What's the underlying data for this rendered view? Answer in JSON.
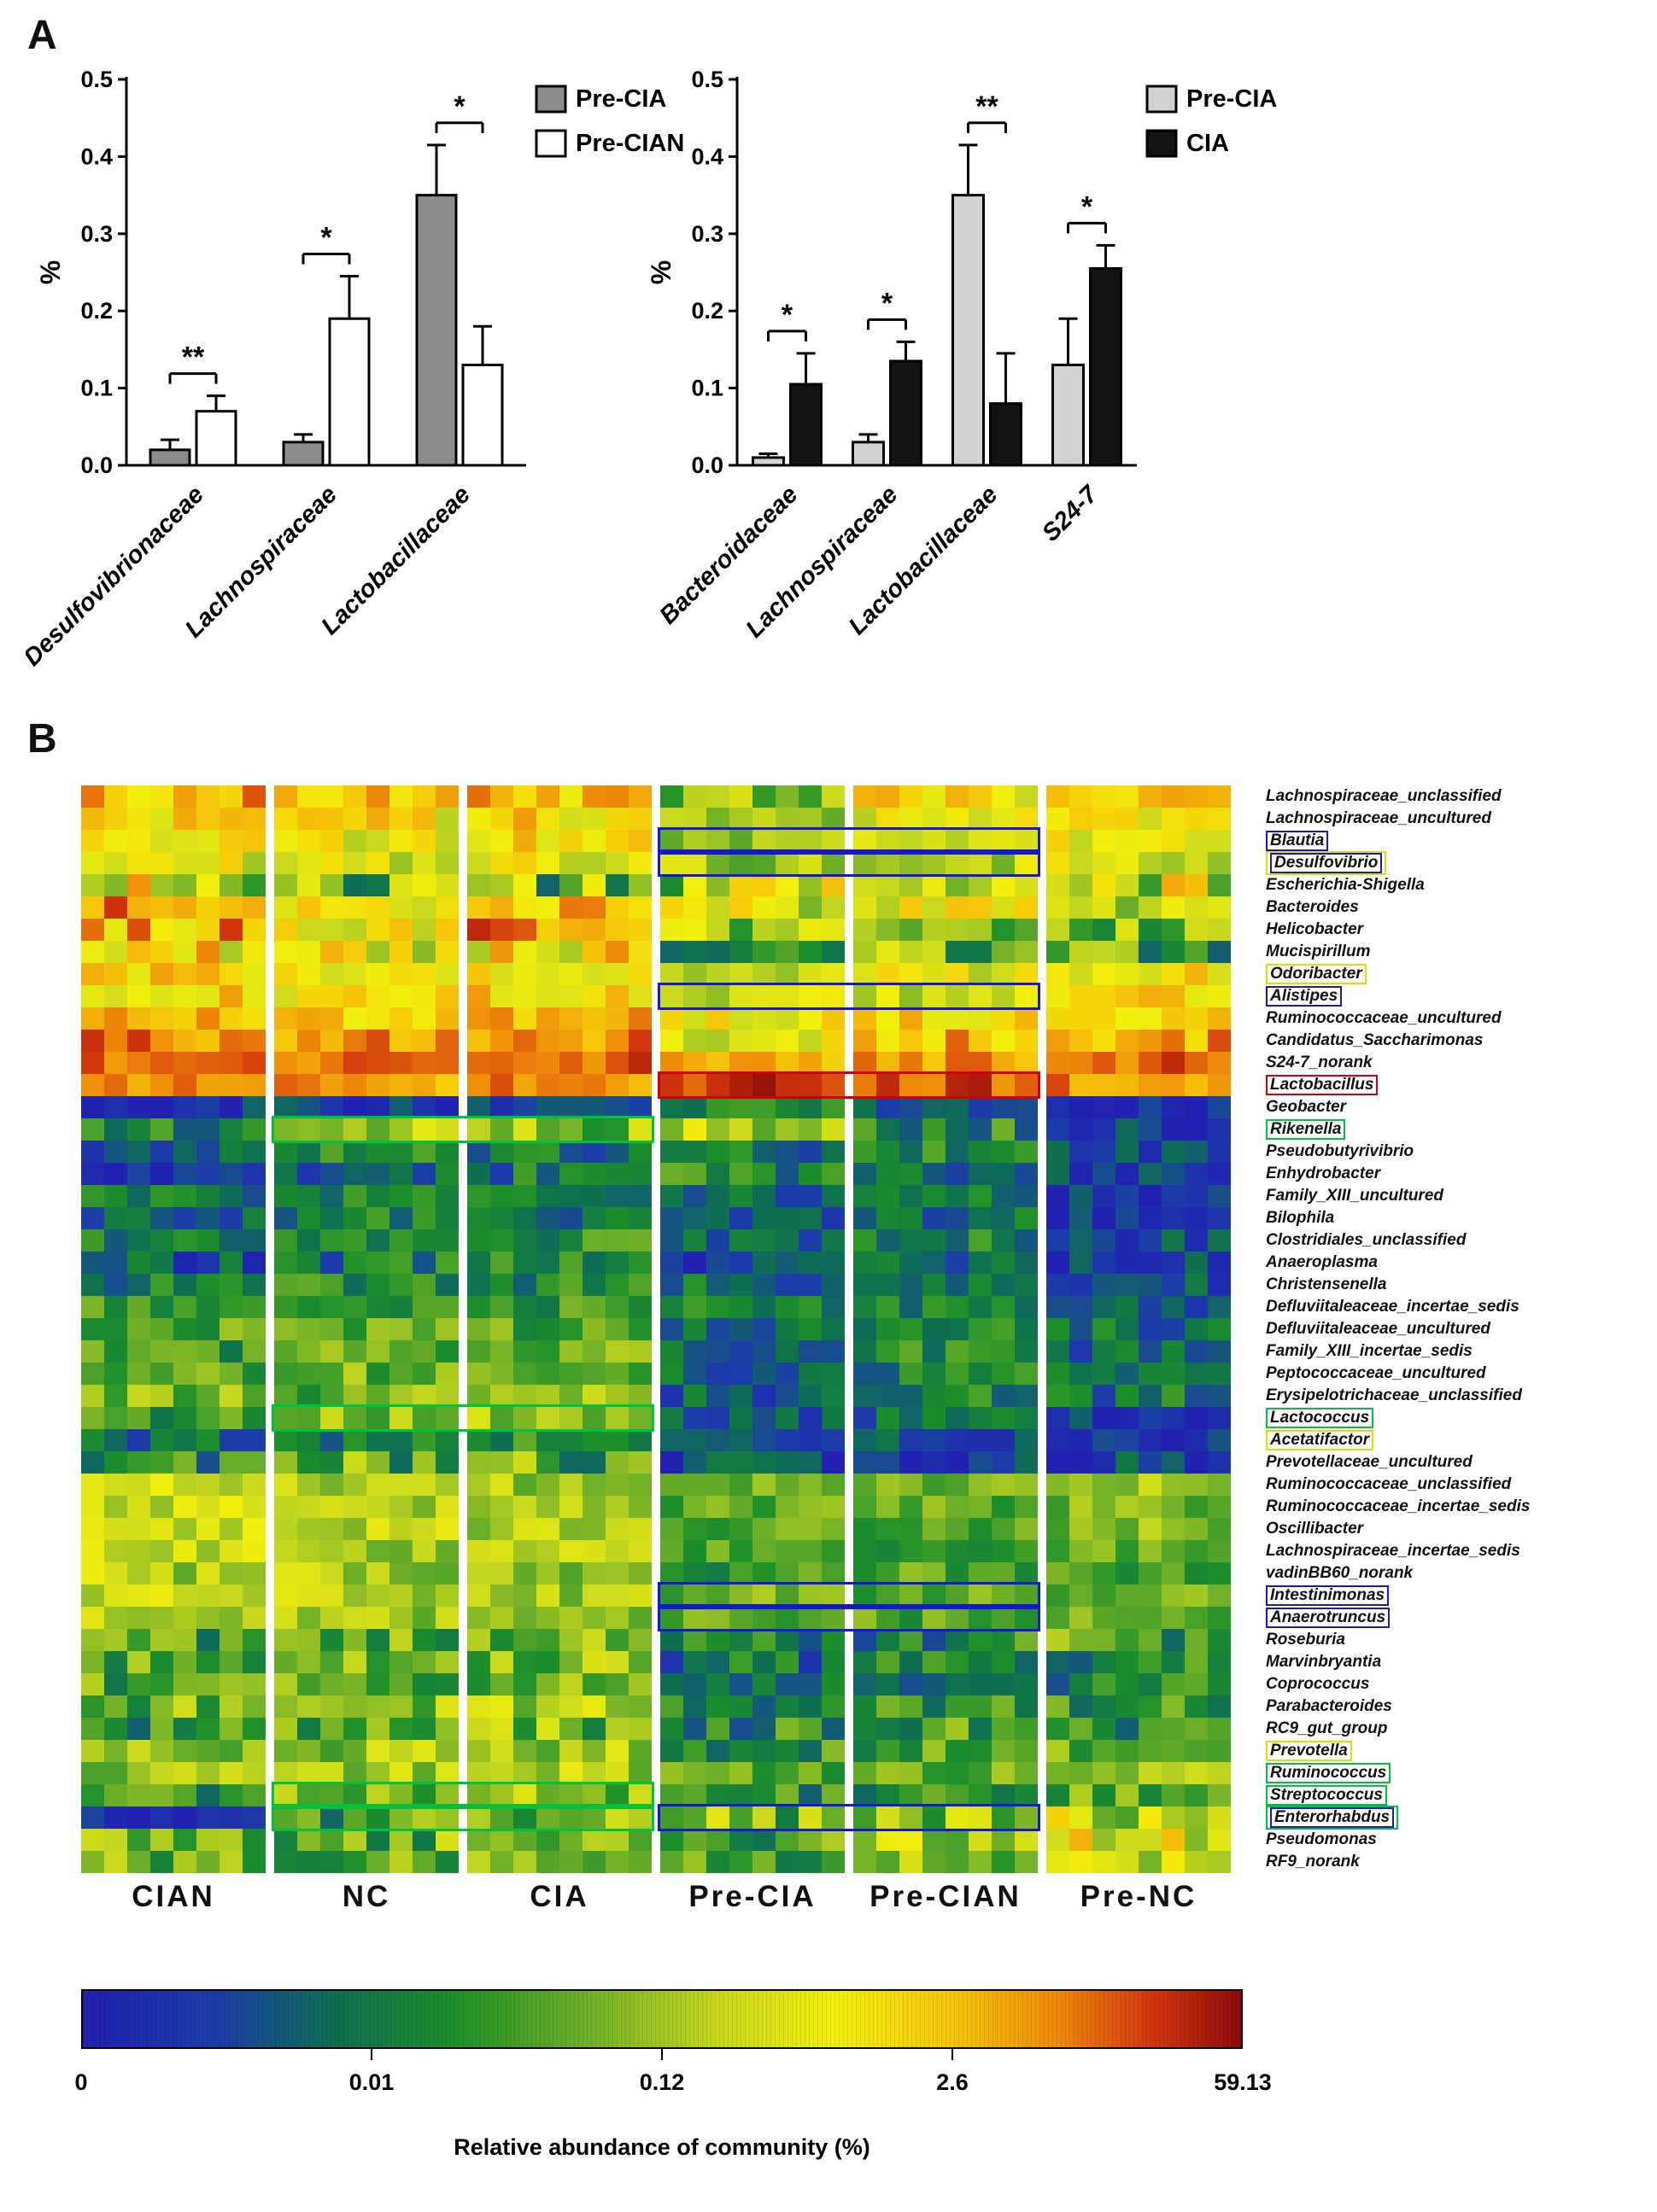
{
  "panel_a": {
    "label": "A"
  },
  "panel_b": {
    "label": "B"
  },
  "chart_data": [
    {
      "type": "bar",
      "panel": "A-left",
      "ylabel": "%",
      "ylim": [
        0,
        0.5
      ],
      "yticks": [
        0.0,
        0.1,
        0.2,
        0.3,
        0.4,
        0.5
      ],
      "categories": [
        "Desulfovibrionaceae",
        "Lachnospiraceae",
        "Lactobacillaceae"
      ],
      "series": [
        {
          "name": "Pre-CIA",
          "fill": "#8c8c8c",
          "values": [
            0.02,
            0.03,
            0.35
          ],
          "errors": [
            0.013,
            0.01,
            0.065
          ]
        },
        {
          "name": "Pre-CIAN",
          "fill": "#ffffff",
          "values": [
            0.07,
            0.19,
            0.13
          ],
          "errors": [
            0.02,
            0.055,
            0.05
          ]
        }
      ],
      "significance": [
        "**",
        "*",
        "*"
      ],
      "legend_position": "top-right",
      "grid": false
    },
    {
      "type": "bar",
      "panel": "A-right",
      "ylabel": "%",
      "ylim": [
        0,
        0.5
      ],
      "yticks": [
        0.0,
        0.1,
        0.2,
        0.3,
        0.4,
        0.5
      ],
      "categories": [
        "Bacteroidaceae",
        "Lachnospiraceae",
        "Lactobacillaceae",
        "S24-7"
      ],
      "series": [
        {
          "name": "Pre-CIA",
          "fill": "#d3d3d3",
          "values": [
            0.01,
            0.03,
            0.35,
            0.13
          ],
          "errors": [
            0.005,
            0.01,
            0.065,
            0.06
          ]
        },
        {
          "name": "CIA",
          "fill": "#141414",
          "values": [
            0.105,
            0.135,
            0.08,
            0.255
          ],
          "errors": [
            0.04,
            0.025,
            0.065,
            0.03
          ]
        }
      ],
      "significance": [
        "*",
        "*",
        "**",
        "*"
      ],
      "legend_position": "top-right",
      "grid": false
    },
    {
      "type": "heatmap",
      "panel": "B",
      "column_groups": [
        "CIAN",
        "NC",
        "CIA",
        "Pre-CIA",
        "Pre-CIAN",
        "Pre-NC"
      ],
      "columns_per_group": 8,
      "box_colors": {
        "blue": "#1616d6",
        "yellow": "#dede00",
        "red": "#d40000",
        "green": "#00c23c"
      },
      "colormap_stops": [
        [
          0.0,
          "#2121b2"
        ],
        [
          0.12,
          "#1b3fa6"
        ],
        [
          0.22,
          "#0e7050"
        ],
        [
          0.32,
          "#1d8f2a"
        ],
        [
          0.45,
          "#7ab427"
        ],
        [
          0.55,
          "#c8d81e"
        ],
        [
          0.65,
          "#f2ef0c"
        ],
        [
          0.75,
          "#f5c60a"
        ],
        [
          0.84,
          "#ee8b0a"
        ],
        [
          0.92,
          "#d4380e"
        ],
        [
          1.0,
          "#8f0b0b"
        ]
      ],
      "rows": [
        {
          "name": "Lachnospiraceae_unclassified",
          "box": null,
          "levels": [
            0.76,
            0.72,
            0.74,
            0.46,
            0.66,
            0.7
          ],
          "noise": 0.14
        },
        {
          "name": "Lachnospiraceae_uncultured",
          "box": null,
          "levels": [
            0.7,
            0.67,
            0.69,
            0.42,
            0.6,
            0.68
          ],
          "noise": 0.14
        },
        {
          "name": "Blautia",
          "box": [
            "blue"
          ],
          "levels": [
            0.67,
            0.64,
            0.67,
            0.46,
            0.55,
            0.64
          ],
          "noise": 0.12
        },
        {
          "name": "Desulfovibrio",
          "box": [
            "blue",
            "yellow"
          ],
          "levels": [
            0.62,
            0.6,
            0.62,
            0.5,
            0.55,
            0.6
          ],
          "noise": 0.12
        },
        {
          "name": "Escherichia-Shigella",
          "box": null,
          "levels": [
            0.58,
            0.42,
            0.4,
            0.55,
            0.52,
            0.58
          ],
          "noise": 0.26
        },
        {
          "name": "Bacteroides",
          "box": null,
          "levels": [
            0.78,
            0.68,
            0.74,
            0.58,
            0.62,
            0.55
          ],
          "noise": 0.16
        },
        {
          "name": "Helicobacter",
          "box": null,
          "levels": [
            0.8,
            0.72,
            0.76,
            0.45,
            0.5,
            0.4
          ],
          "noise": 0.2
        },
        {
          "name": "Mucispirillum",
          "box": null,
          "levels": [
            0.66,
            0.62,
            0.7,
            0.38,
            0.42,
            0.35
          ],
          "noise": 0.2
        },
        {
          "name": "Odoribacter",
          "box": [
            "yellow"
          ],
          "levels": [
            0.72,
            0.68,
            0.7,
            0.6,
            0.62,
            0.68
          ],
          "noise": 0.12
        },
        {
          "name": "Alistipes",
          "box": [
            "blue"
          ],
          "levels": [
            0.7,
            0.68,
            0.7,
            0.55,
            0.58,
            0.72
          ],
          "noise": 0.12
        },
        {
          "name": "Ruminococcaceae_uncultured",
          "box": null,
          "levels": [
            0.78,
            0.74,
            0.76,
            0.66,
            0.7,
            0.74
          ],
          "noise": 0.1
        },
        {
          "name": "Candidatus_Saccharimonas",
          "box": null,
          "levels": [
            0.84,
            0.8,
            0.82,
            0.6,
            0.76,
            0.8
          ],
          "noise": 0.12
        },
        {
          "name": "S24-7_norank",
          "box": null,
          "levels": [
            0.88,
            0.85,
            0.87,
            0.78,
            0.82,
            0.88
          ],
          "noise": 0.08
        },
        {
          "name": "Lactobacillus",
          "box": [
            "red"
          ],
          "levels": [
            0.82,
            0.8,
            0.82,
            0.92,
            0.9,
            0.84
          ],
          "noise": 0.08
        },
        {
          "name": "Geobacter",
          "box": null,
          "levels": [
            0.08,
            0.1,
            0.08,
            0.3,
            0.15,
            0.05
          ],
          "noise": 0.12
        },
        {
          "name": "Rikenella",
          "box": [
            "green"
          ],
          "levels": [
            0.3,
            0.48,
            0.45,
            0.55,
            0.3,
            0.08
          ],
          "noise": 0.15
        },
        {
          "name": "Pseudobutyrivibrio",
          "box": null,
          "levels": [
            0.15,
            0.25,
            0.2,
            0.25,
            0.3,
            0.1
          ],
          "noise": 0.15
        },
        {
          "name": "Enhydrobacter",
          "box": null,
          "levels": [
            0.12,
            0.22,
            0.25,
            0.3,
            0.2,
            0.08
          ],
          "noise": 0.15
        },
        {
          "name": "Family_XIII_uncultured",
          "box": null,
          "levels": [
            0.25,
            0.3,
            0.28,
            0.2,
            0.25,
            0.1
          ],
          "noise": 0.12
        },
        {
          "name": "Bilophila",
          "box": null,
          "levels": [
            0.2,
            0.28,
            0.25,
            0.15,
            0.22,
            0.08
          ],
          "noise": 0.12
        },
        {
          "name": "Clostridiales_unclassified",
          "box": null,
          "levels": [
            0.28,
            0.3,
            0.32,
            0.2,
            0.28,
            0.12
          ],
          "noise": 0.12
        },
        {
          "name": "Anaeroplasma",
          "box": null,
          "levels": [
            0.15,
            0.25,
            0.3,
            0.12,
            0.2,
            0.08
          ],
          "noise": 0.15
        },
        {
          "name": "Christensenella",
          "box": null,
          "levels": [
            0.25,
            0.32,
            0.3,
            0.22,
            0.28,
            0.15
          ],
          "noise": 0.12
        },
        {
          "name": "Defluviitaleaceae_incertae_sedis",
          "box": null,
          "levels": [
            0.35,
            0.38,
            0.36,
            0.25,
            0.3,
            0.2
          ],
          "noise": 0.12
        },
        {
          "name": "Defluviitaleaceae_uncultured",
          "box": null,
          "levels": [
            0.38,
            0.4,
            0.38,
            0.25,
            0.32,
            0.22
          ],
          "noise": 0.12
        },
        {
          "name": "Family_XIII_incertae_sedis",
          "box": null,
          "levels": [
            0.35,
            0.4,
            0.42,
            0.22,
            0.3,
            0.2
          ],
          "noise": 0.12
        },
        {
          "name": "Peptococcaceae_uncultured",
          "box": null,
          "levels": [
            0.38,
            0.42,
            0.4,
            0.2,
            0.28,
            0.25
          ],
          "noise": 0.12
        },
        {
          "name": "Erysipelotrichaceae_unclassified",
          "box": null,
          "levels": [
            0.4,
            0.42,
            0.45,
            0.18,
            0.25,
            0.22
          ],
          "noise": 0.15
        },
        {
          "name": "Lactococcus",
          "box": [
            "green"
          ],
          "levels": [
            0.35,
            0.46,
            0.48,
            0.15,
            0.2,
            0.1
          ],
          "noise": 0.12
        },
        {
          "name": "Acetatifactor",
          "box": [
            "yellow"
          ],
          "levels": [
            0.2,
            0.28,
            0.3,
            0.08,
            0.12,
            0.05
          ],
          "noise": 0.12
        },
        {
          "name": "Prevotellaceae_uncultured",
          "box": null,
          "levels": [
            0.32,
            0.4,
            0.38,
            0.06,
            0.06,
            0.05
          ],
          "noise": 0.2
        },
        {
          "name": "Ruminococcaceae_unclassified",
          "box": null,
          "levels": [
            0.55,
            0.52,
            0.5,
            0.45,
            0.42,
            0.48
          ],
          "noise": 0.1
        },
        {
          "name": "Ruminococcaceae_incertae_sedis",
          "box": null,
          "levels": [
            0.55,
            0.5,
            0.52,
            0.42,
            0.4,
            0.45
          ],
          "noise": 0.1
        },
        {
          "name": "Oscillibacter",
          "box": null,
          "levels": [
            0.58,
            0.55,
            0.52,
            0.4,
            0.38,
            0.45
          ],
          "noise": 0.1
        },
        {
          "name": "Lachnospiraceae_incertae_sedis",
          "box": null,
          "levels": [
            0.55,
            0.52,
            0.55,
            0.38,
            0.35,
            0.42
          ],
          "noise": 0.1
        },
        {
          "name": "vadinBB60_norank",
          "box": null,
          "levels": [
            0.52,
            0.5,
            0.48,
            0.35,
            0.38,
            0.4
          ],
          "noise": 0.12
        },
        {
          "name": "Intestinimonas",
          "box": [
            "blue"
          ],
          "levels": [
            0.55,
            0.52,
            0.5,
            0.42,
            0.4,
            0.42
          ],
          "noise": 0.1
        },
        {
          "name": "Anaerotruncus",
          "box": [
            "blue"
          ],
          "levels": [
            0.52,
            0.5,
            0.48,
            0.4,
            0.38,
            0.4
          ],
          "noise": 0.1
        },
        {
          "name": "Roseburia",
          "box": null,
          "levels": [
            0.35,
            0.4,
            0.45,
            0.25,
            0.3,
            0.35
          ],
          "noise": 0.18
        },
        {
          "name": "Marvinbryantia",
          "box": null,
          "levels": [
            0.4,
            0.42,
            0.45,
            0.22,
            0.28,
            0.32
          ],
          "noise": 0.15
        },
        {
          "name": "Coprococcus",
          "box": null,
          "levels": [
            0.38,
            0.4,
            0.42,
            0.25,
            0.3,
            0.28
          ],
          "noise": 0.15
        },
        {
          "name": "Parabacteroides",
          "box": null,
          "levels": [
            0.42,
            0.45,
            0.48,
            0.28,
            0.32,
            0.35
          ],
          "noise": 0.15
        },
        {
          "name": "RC9_gut_group",
          "box": null,
          "levels": [
            0.3,
            0.4,
            0.42,
            0.3,
            0.35,
            0.3
          ],
          "noise": 0.18
        },
        {
          "name": "Prevotella",
          "box": [
            "yellow"
          ],
          "levels": [
            0.5,
            0.48,
            0.52,
            0.35,
            0.4,
            0.45
          ],
          "noise": 0.15
        },
        {
          "name": "Ruminococcus",
          "box": [
            "green"
          ],
          "levels": [
            0.48,
            0.5,
            0.52,
            0.38,
            0.42,
            0.45
          ],
          "noise": 0.12
        },
        {
          "name": "Streptococcus",
          "box": [
            "green"
          ],
          "levels": [
            0.35,
            0.42,
            0.45,
            0.3,
            0.35,
            0.4
          ],
          "noise": 0.15
        },
        {
          "name": "Enterorhabdus",
          "box": [
            "blue",
            "green"
          ],
          "levels": [
            0.12,
            0.35,
            0.38,
            0.42,
            0.45,
            0.55
          ],
          "noise": 0.2
        },
        {
          "name": "Pseudomonas",
          "box": null,
          "levels": [
            0.45,
            0.42,
            0.44,
            0.4,
            0.52,
            0.62
          ],
          "noise": 0.18
        },
        {
          "name": "RF9_norank",
          "box": null,
          "levels": [
            0.42,
            0.4,
            0.44,
            0.36,
            0.46,
            0.52
          ],
          "noise": 0.15
        }
      ],
      "highlight_boxes": [
        {
          "row_index": 2,
          "group_start": 3,
          "group_end": 4,
          "color": "blue"
        },
        {
          "row_index": 3,
          "group_start": 3,
          "group_end": 4,
          "color": "blue"
        },
        {
          "row_index": 9,
          "group_start": 3,
          "group_end": 4,
          "color": "blue"
        },
        {
          "row_index": 13,
          "group_start": 3,
          "group_end": 4,
          "color": "red"
        },
        {
          "row_index": 15,
          "group_start": 1,
          "group_end": 2,
          "color": "green"
        },
        {
          "row_index": 28,
          "group_start": 1,
          "group_end": 2,
          "color": "green"
        },
        {
          "row_index": 36,
          "group_start": 3,
          "group_end": 4,
          "color": "blue"
        },
        {
          "row_index": 37,
          "group_start": 3,
          "group_end": 4,
          "color": "blue"
        },
        {
          "row_index": 45,
          "group_start": 1,
          "group_end": 2,
          "color": "green"
        },
        {
          "row_index": 46,
          "group_start": 1,
          "group_end": 2,
          "color": "green"
        },
        {
          "row_index": 46,
          "group_start": 3,
          "group_end": 4,
          "color": "blue"
        }
      ],
      "colorbar": {
        "tick_labels": [
          "0",
          "0.01",
          "0.12",
          "2.6",
          "59.13"
        ],
        "caption": "Relative abundance of community (%)"
      }
    }
  ]
}
